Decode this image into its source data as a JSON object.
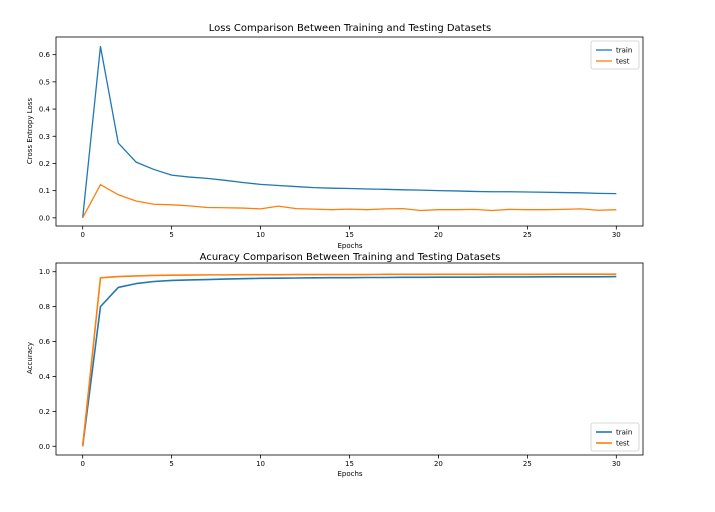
{
  "colors": {
    "train": "#1f77b4",
    "test": "#ff7f0e"
  },
  "chart_data": [
    {
      "type": "line",
      "title": "Loss Comparison Between Training and Testing Datasets",
      "xlabel": "Epochs",
      "ylabel": "Cross Entropy Loss",
      "xlim": [
        -1.5,
        31.5
      ],
      "ylim": [
        -0.03,
        0.665
      ],
      "xticks": [
        0,
        5,
        10,
        15,
        20,
        25,
        30
      ],
      "yticks": [
        0.0,
        0.1,
        0.2,
        0.3,
        0.4,
        0.5,
        0.6
      ],
      "ytick_labels": [
        "0.0",
        "0.1",
        "0.2",
        "0.3",
        "0.4",
        "0.5",
        "0.6"
      ],
      "legend_position": "top-right",
      "grid": false,
      "x": [
        0,
        1,
        2,
        3,
        4,
        5,
        6,
        7,
        8,
        9,
        10,
        11,
        12,
        13,
        14,
        15,
        16,
        17,
        18,
        19,
        20,
        21,
        22,
        23,
        24,
        25,
        26,
        27,
        28,
        29,
        30
      ],
      "series": [
        {
          "name": "train",
          "values": [
            0.0,
            0.63,
            0.275,
            0.205,
            0.178,
            0.157,
            0.15,
            0.145,
            0.138,
            0.13,
            0.123,
            0.119,
            0.115,
            0.111,
            0.109,
            0.108,
            0.106,
            0.105,
            0.103,
            0.102,
            0.1,
            0.099,
            0.097,
            0.096,
            0.096,
            0.095,
            0.094,
            0.093,
            0.092,
            0.09,
            0.089
          ]
        },
        {
          "name": "test",
          "values": [
            0.0,
            0.122,
            0.085,
            0.062,
            0.05,
            0.048,
            0.044,
            0.038,
            0.037,
            0.036,
            0.033,
            0.043,
            0.034,
            0.032,
            0.03,
            0.032,
            0.03,
            0.033,
            0.034,
            0.027,
            0.03,
            0.03,
            0.031,
            0.027,
            0.031,
            0.03,
            0.03,
            0.031,
            0.033,
            0.028,
            0.03
          ]
        }
      ]
    },
    {
      "type": "line",
      "title": "Acuracy Comparison Between Training and Testing Datasets",
      "xlabel": "Epochs",
      "ylabel": "Accuracy",
      "xlim": [
        -1.5,
        31.5
      ],
      "ylim": [
        -0.05,
        1.05
      ],
      "xticks": [
        0,
        5,
        10,
        15,
        20,
        25,
        30
      ],
      "yticks": [
        0.0,
        0.2,
        0.4,
        0.6,
        0.8,
        1.0
      ],
      "ytick_labels": [
        "0.0",
        "0.2",
        "0.4",
        "0.6",
        "0.8",
        "1.0"
      ],
      "legend_position": "bottom-right",
      "grid": false,
      "x": [
        0,
        1,
        2,
        3,
        4,
        5,
        6,
        7,
        8,
        9,
        10,
        11,
        12,
        13,
        14,
        15,
        16,
        17,
        18,
        19,
        20,
        21,
        22,
        23,
        24,
        25,
        26,
        27,
        28,
        29,
        30
      ],
      "series": [
        {
          "name": "train",
          "values": [
            0.0,
            0.8,
            0.91,
            0.932,
            0.944,
            0.95,
            0.953,
            0.955,
            0.958,
            0.96,
            0.962,
            0.963,
            0.964,
            0.965,
            0.966,
            0.966,
            0.967,
            0.967,
            0.968,
            0.968,
            0.969,
            0.969,
            0.969,
            0.97,
            0.97,
            0.97,
            0.971,
            0.971,
            0.971,
            0.971,
            0.972
          ]
        },
        {
          "name": "test",
          "values": [
            0.0,
            0.965,
            0.972,
            0.976,
            0.979,
            0.98,
            0.981,
            0.982,
            0.982,
            0.983,
            0.983,
            0.983,
            0.984,
            0.984,
            0.984,
            0.984,
            0.984,
            0.985,
            0.985,
            0.985,
            0.985,
            0.985,
            0.985,
            0.985,
            0.985,
            0.985,
            0.985,
            0.986,
            0.986,
            0.986,
            0.986
          ]
        }
      ]
    }
  ]
}
